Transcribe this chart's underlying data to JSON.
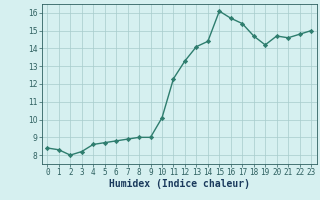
{
  "x": [
    0,
    1,
    2,
    3,
    4,
    5,
    6,
    7,
    8,
    9,
    10,
    11,
    12,
    13,
    14,
    15,
    16,
    17,
    18,
    19,
    20,
    21,
    22,
    23
  ],
  "y": [
    8.4,
    8.3,
    8.0,
    8.2,
    8.6,
    8.7,
    8.8,
    8.9,
    9.0,
    9.0,
    10.1,
    12.3,
    13.3,
    14.1,
    14.4,
    16.1,
    15.7,
    15.4,
    14.7,
    14.2,
    14.7,
    14.6,
    14.8,
    15.0
  ],
  "line_color": "#2e7d6e",
  "marker": "D",
  "marker_size": 2.2,
  "bg_color": "#d6f0f0",
  "grid_color": "#a8cccc",
  "xlabel": "Humidex (Indice chaleur)",
  "xlim": [
    -0.5,
    23.5
  ],
  "ylim": [
    7.5,
    16.5
  ],
  "yticks": [
    8,
    9,
    10,
    11,
    12,
    13,
    14,
    15,
    16
  ],
  "xticks": [
    0,
    1,
    2,
    3,
    4,
    5,
    6,
    7,
    8,
    9,
    10,
    11,
    12,
    13,
    14,
    15,
    16,
    17,
    18,
    19,
    20,
    21,
    22,
    23
  ],
  "tick_color": "#2e6060",
  "axis_color": "#2e6060",
  "label_color": "#1a3a5c",
  "fontsize_ticks": 5.5,
  "fontsize_xlabel": 7,
  "line_width": 1.0
}
